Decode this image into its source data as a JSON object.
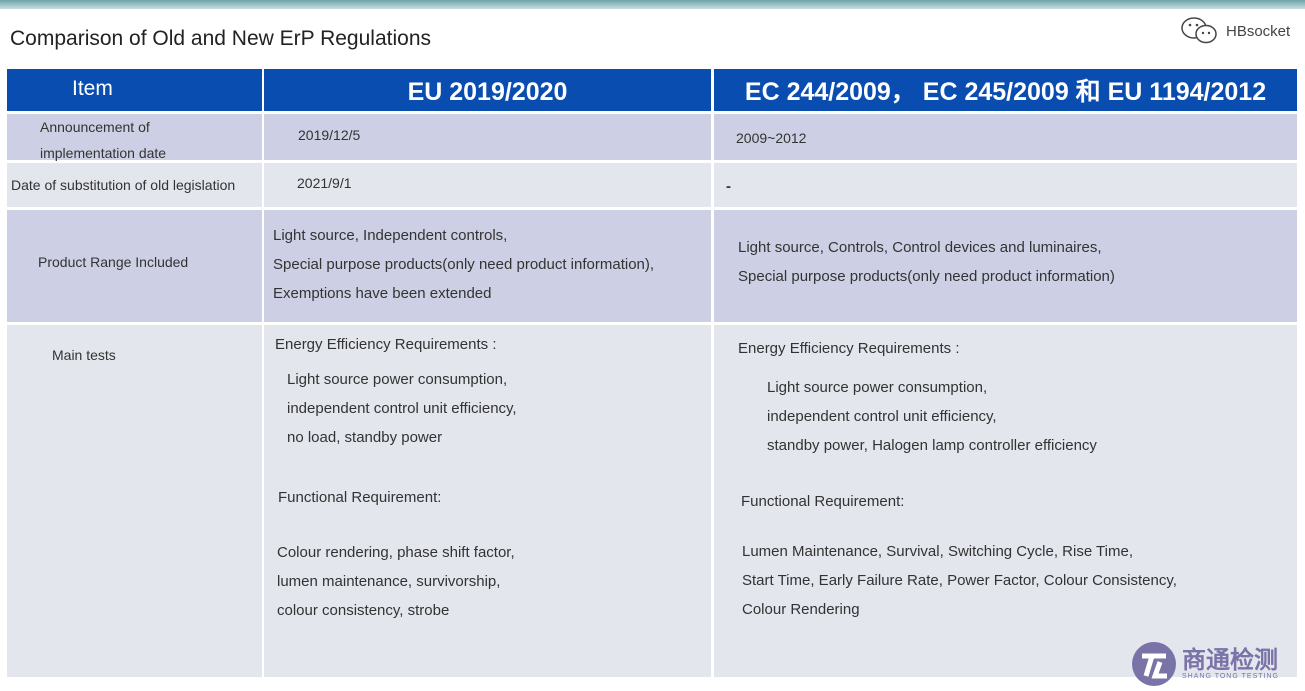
{
  "title": "Comparison of Old and New ErP Regulations",
  "brand": {
    "icon": "wechat-icon",
    "name": "HBsocket"
  },
  "table": {
    "headers": [
      "Item",
      "EU 2019/2020",
      "EC 244/2009， EC 245/2009 和 EU 1194/2012"
    ],
    "rows": [
      {
        "item": "Announcement of implementation date",
        "new": [
          "2019/12/5"
        ],
        "old": [
          "2009~2012"
        ]
      },
      {
        "item": "Date of substitution of old legislation",
        "new": [
          "2021/9/1"
        ],
        "old": [
          "-"
        ]
      },
      {
        "item": "Product Range Included",
        "new": [
          "Light source, Independent controls,",
          "Special purpose products(only need product information),",
          "Exemptions have been extended"
        ],
        "old": [
          "Light source, Controls, Control devices and luminaires,",
          "Special purpose products(only need product information)"
        ]
      },
      {
        "item": "Main tests",
        "new": {
          "ee_title": "Energy Efficiency Requirements :",
          "ee": [
            "Light source power consumption,",
            "independent control unit efficiency,",
            "no load, standby power"
          ],
          "fr_title": "Functional Requirement:",
          "fr": [
            "Colour rendering, phase shift factor,",
            "lumen maintenance, survivorship,",
            "colour consistency, strobe"
          ]
        },
        "old": {
          "ee_title": "Energy Efficiency Requirements :",
          "ee": [
            "Light source power consumption,",
            "independent control unit efficiency,",
            "standby power, Halogen lamp controller efficiency"
          ],
          "fr_title": "Functional Requirement:",
          "fr": [
            "Lumen Maintenance, Survival, Switching Cycle, Rise Time,",
            "Start Time, Early Failure Rate, Power Factor, Colour Consistency,",
            "Colour Rendering"
          ]
        }
      }
    ]
  },
  "watermark": {
    "cn": "商通检测",
    "en": "SHANG TONG TESTING"
  }
}
